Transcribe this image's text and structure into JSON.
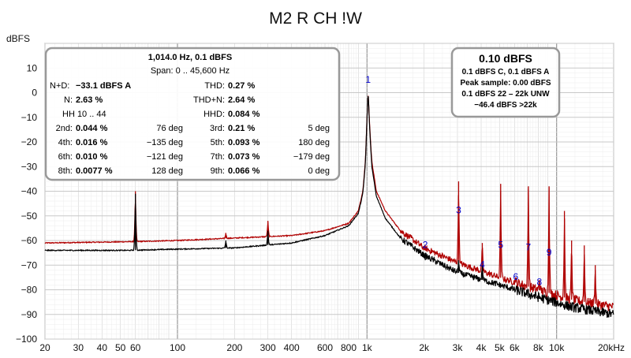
{
  "chart_data": {
    "type": "line",
    "title": "M2 R CH !W",
    "ylabel": "dBFS",
    "xlabel": "",
    "x_scale": "log",
    "xlim": [
      20,
      20000
    ],
    "ylim": [
      -100,
      20
    ],
    "grid": true,
    "x_tick_labels": [
      {
        "value": 20,
        "label": "20"
      },
      {
        "value": 30,
        "label": "30"
      },
      {
        "value": 40,
        "label": "40"
      },
      {
        "value": 50,
        "label": "50"
      },
      {
        "value": 60,
        "label": "60"
      },
      {
        "value": 100,
        "label": "100"
      },
      {
        "value": 200,
        "label": "200"
      },
      {
        "value": 300,
        "label": "300"
      },
      {
        "value": 400,
        "label": "400"
      },
      {
        "value": 600,
        "label": "600"
      },
      {
        "value": 800,
        "label": "800"
      },
      {
        "value": 1000,
        "label": "1k"
      },
      {
        "value": 2000,
        "label": "2k"
      },
      {
        "value": 3000,
        "label": "3k"
      },
      {
        "value": 4000,
        "label": "4k"
      },
      {
        "value": 5000,
        "label": "5k"
      },
      {
        "value": 6000,
        "label": "6k"
      },
      {
        "value": 8000,
        "label": "8k"
      },
      {
        "value": 10000,
        "label": "10k"
      },
      {
        "value": 20000,
        "label": "20kHz"
      }
    ],
    "y_ticks": [
      10,
      0,
      -10,
      -20,
      -30,
      -40,
      -50,
      -60,
      -70,
      -80,
      -90,
      -100
    ],
    "colors": {
      "red_trace": "#b00000",
      "black_trace": "#000000",
      "marker": "#0000cc",
      "grid": "#d8d8d8",
      "major_grid": "#a0a0a0"
    },
    "series": [
      {
        "color": "#b00000",
        "floor": [
          [
            20,
            -61
          ],
          [
            55,
            -60.5
          ],
          [
            100,
            -60
          ],
          [
            200,
            -59
          ],
          [
            400,
            -58
          ],
          [
            600,
            -56
          ],
          [
            800,
            -53
          ],
          [
            900,
            -48
          ],
          [
            950,
            -40
          ],
          [
            980,
            -28
          ],
          [
            1000,
            -10
          ],
          [
            1014,
            0.1
          ],
          [
            1030,
            -12
          ],
          [
            1060,
            -28
          ],
          [
            1120,
            -40
          ],
          [
            1250,
            -48
          ],
          [
            1500,
            -56
          ],
          [
            2000,
            -63
          ],
          [
            3000,
            -69
          ],
          [
            5000,
            -75
          ],
          [
            8000,
            -80
          ],
          [
            12000,
            -84
          ],
          [
            20000,
            -87
          ]
        ],
        "peaks": [
          [
            60,
            -40
          ],
          [
            180,
            -57
          ],
          [
            300,
            -52
          ],
          [
            2028,
            -64
          ],
          [
            3042,
            -36
          ],
          [
            4056,
            -61
          ],
          [
            5070,
            -37
          ],
          [
            6084,
            -75
          ],
          [
            7098,
            -38
          ],
          [
            8112,
            -76
          ],
          [
            9126,
            -38
          ],
          [
            11000,
            -48
          ],
          [
            12000,
            -60
          ],
          [
            14000,
            -62
          ],
          [
            16000,
            -70
          ]
        ]
      },
      {
        "color": "#000000",
        "floor": [
          [
            20,
            -64
          ],
          [
            55,
            -64
          ],
          [
            100,
            -63.5
          ],
          [
            200,
            -63
          ],
          [
            400,
            -61
          ],
          [
            600,
            -58
          ],
          [
            800,
            -54
          ],
          [
            900,
            -49
          ],
          [
            950,
            -41
          ],
          [
            980,
            -29
          ],
          [
            1000,
            -10
          ],
          [
            1014,
            0.1
          ],
          [
            1030,
            -13
          ],
          [
            1060,
            -30
          ],
          [
            1120,
            -42
          ],
          [
            1250,
            -51
          ],
          [
            1500,
            -59
          ],
          [
            2000,
            -66
          ],
          [
            3000,
            -73
          ],
          [
            5000,
            -78
          ],
          [
            8000,
            -83
          ],
          [
            12000,
            -87
          ],
          [
            20000,
            -90
          ]
        ],
        "peaks": [
          [
            60,
            -41
          ],
          [
            180,
            -60
          ],
          [
            300,
            -56
          ],
          [
            2028,
            -68
          ],
          [
            3042,
            -68
          ],
          [
            4056,
            -70
          ]
        ]
      }
    ],
    "harmonic_markers": [
      {
        "label": "1",
        "x": 1014,
        "y": 4
      },
      {
        "label": "2",
        "x": 2028,
        "y": -63
      },
      {
        "label": "3",
        "x": 3042,
        "y": -49
      },
      {
        "label": "4",
        "x": 4056,
        "y": -71
      },
      {
        "label": "5",
        "x": 5070,
        "y": -63
      },
      {
        "label": "6",
        "x": 6084,
        "y": -76
      },
      {
        "label": "7",
        "x": 7098,
        "y": -64
      },
      {
        "label": "8",
        "x": 8112,
        "y": -78
      },
      {
        "label": "9",
        "x": 9126,
        "y": -66
      }
    ]
  },
  "left_panel": {
    "header1": "1,014.0 Hz, 0.1 dBFS",
    "header2": "Span: 0 .. 45,600 Hz",
    "nd_label": "N+D:",
    "nd_value": "−33.1 dBFS A",
    "thd_label": "THD:",
    "thd_value": "0.27 %",
    "n_label": "N:",
    "n_value": "2.63 %",
    "thdn_label": "THD+N:",
    "thdn_value": "2.64 %",
    "hh_label": "HH 10 .. 44",
    "hhd_label": "HHD:",
    "hhd_value": "0.084 %",
    "rows": [
      {
        "l_label": "2nd:",
        "l_value": "0.044 %",
        "l_deg": "76 deg",
        "r_label": "3rd:",
        "r_value": "0.21 %",
        "r_deg": "5 deg"
      },
      {
        "l_label": "4th:",
        "l_value": "0.016 %",
        "l_deg": "−135 deg",
        "r_label": "5th:",
        "r_value": "0.093 %",
        "r_deg": "180 deg"
      },
      {
        "l_label": "6th:",
        "l_value": "0.010 %",
        "l_deg": "−121 deg",
        "r_label": "7th:",
        "r_value": "0.073 %",
        "r_deg": "−179 deg"
      },
      {
        "l_label": "8th:",
        "l_value": "0.0077 %",
        "l_deg": "128 deg",
        "r_label": "9th:",
        "r_value": "0.066 %",
        "r_deg": "0 deg"
      }
    ]
  },
  "right_panel": {
    "big": "0.10 dBFS",
    "line1": "0.1 dBFS C, 0.1 dBFS A",
    "line2": "Peak sample: 0.00 dBFS",
    "line3": "0.1 dBFS 22 – 22k UNW",
    "line4": "−46.4 dBFS >22k"
  }
}
